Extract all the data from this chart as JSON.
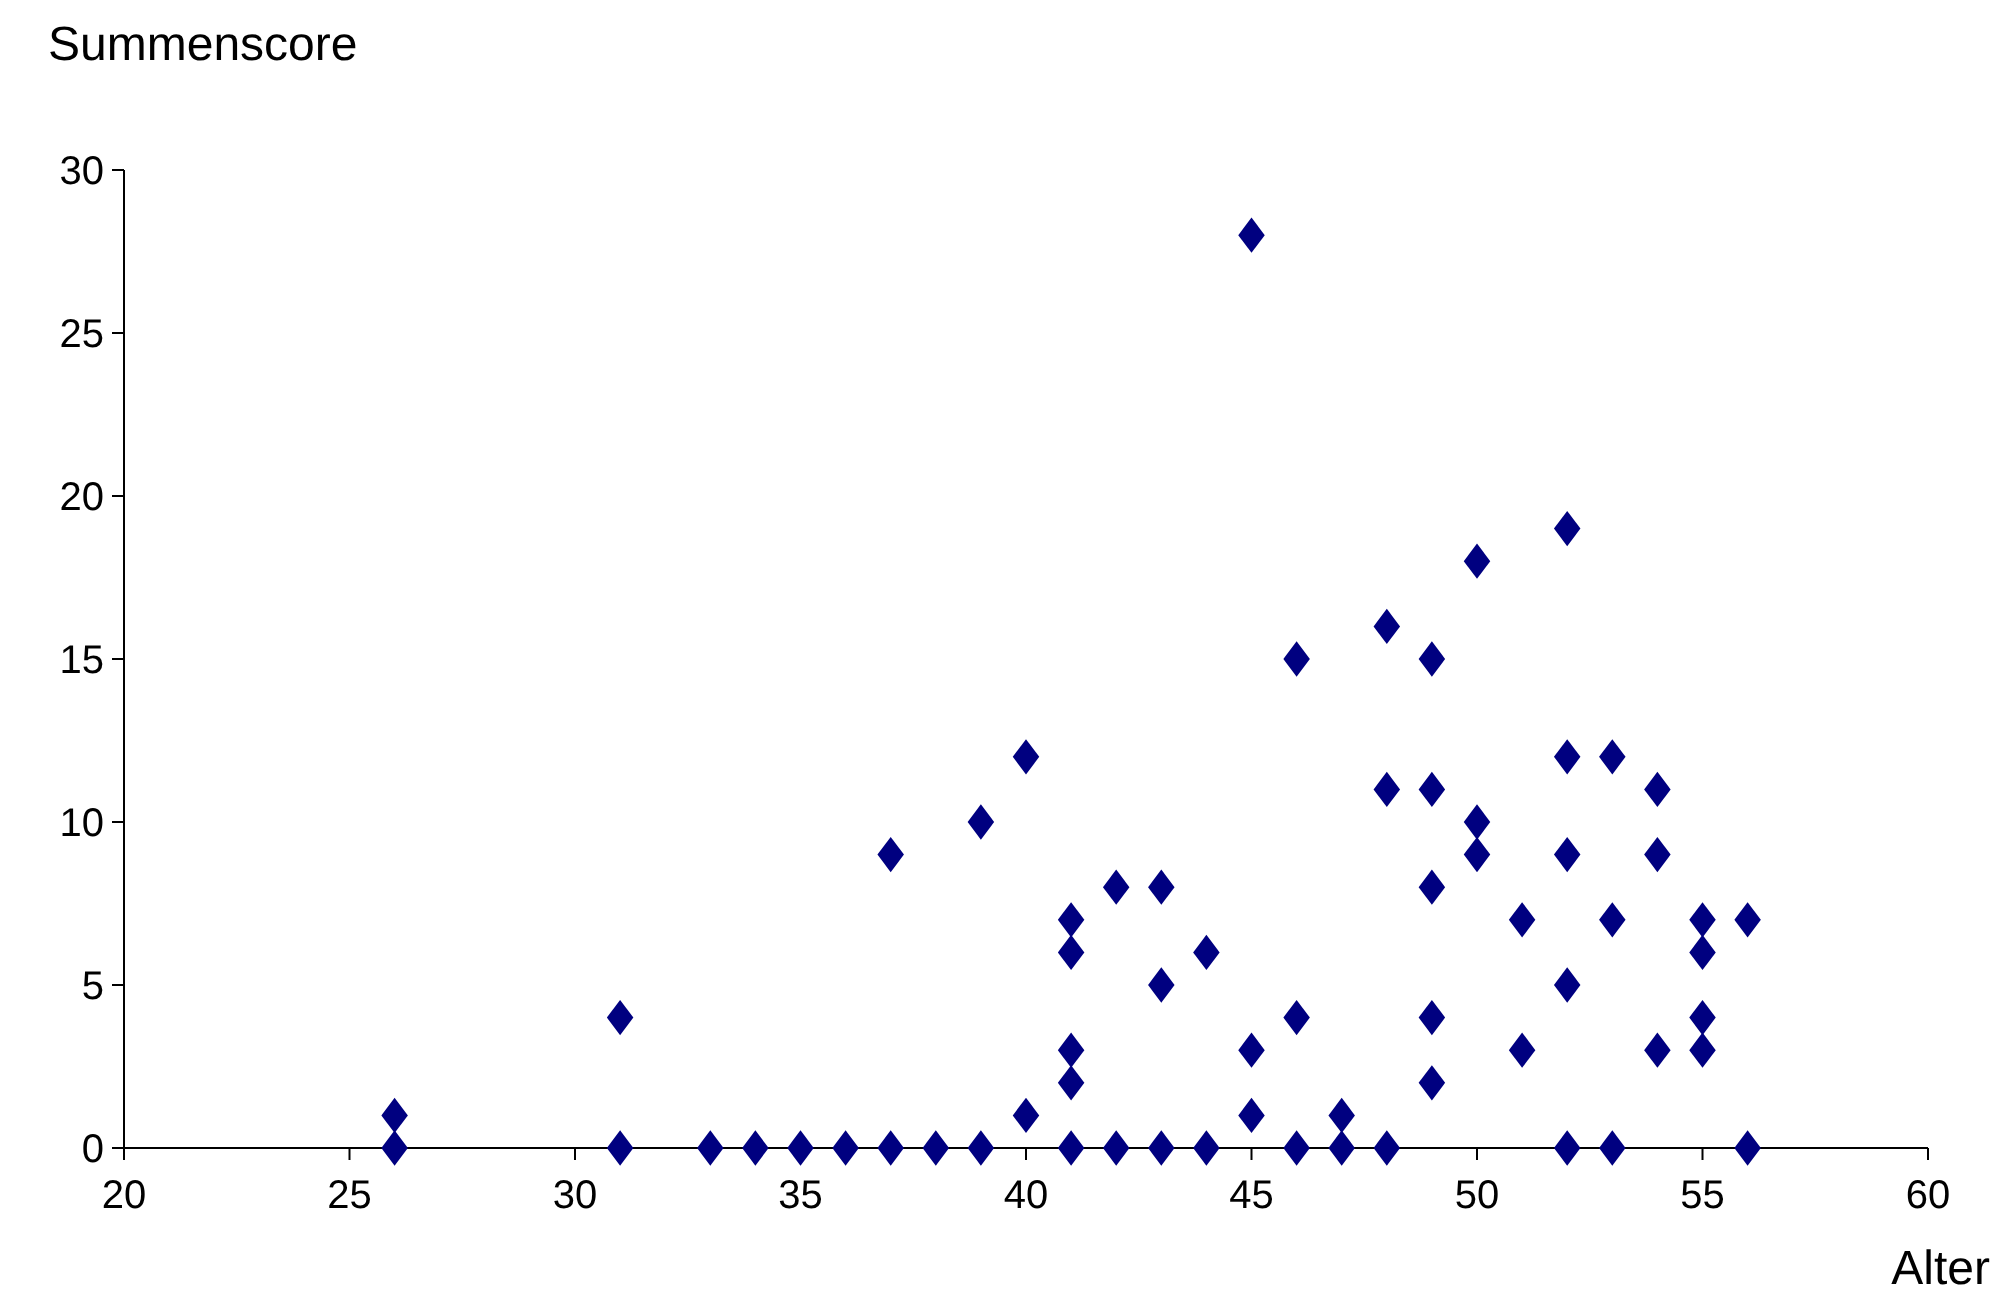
{
  "chart_data": {
    "type": "scatter",
    "xlabel": "Alter",
    "ylabel": "Summenscore",
    "x": [
      26,
      26,
      31,
      31,
      33,
      34,
      35,
      36,
      37,
      37,
      38,
      39,
      39,
      40,
      40,
      41,
      41,
      41,
      41,
      41,
      42,
      42,
      43,
      43,
      43,
      44,
      44,
      45,
      45,
      45,
      46,
      46,
      46,
      47,
      47,
      48,
      48,
      48,
      49,
      49,
      49,
      49,
      49,
      50,
      50,
      50,
      51,
      51,
      52,
      52,
      52,
      52,
      52,
      53,
      53,
      53,
      54,
      54,
      54,
      55,
      55,
      55,
      55,
      56,
      56
    ],
    "series": [
      {
        "color": "#000080",
        "values": [
          1,
          0,
          4,
          0,
          0,
          0,
          0,
          0,
          9,
          0,
          0,
          10,
          0,
          12,
          1,
          7,
          6,
          3,
          2,
          0,
          8,
          0,
          8,
          5,
          0,
          6,
          0,
          28,
          3,
          1,
          15,
          4,
          0,
          1,
          0,
          16,
          11,
          0,
          15,
          11,
          8,
          4,
          2,
          18,
          10,
          9,
          7,
          3,
          19,
          12,
          9,
          5,
          0,
          12,
          7,
          0,
          11,
          9,
          3,
          7,
          6,
          4,
          3,
          7,
          0
        ]
      }
    ],
    "xlim": [
      20,
      60
    ],
    "xticks": [
      20,
      25,
      30,
      35,
      40,
      45,
      50,
      55,
      60
    ],
    "ylim": [
      0,
      30
    ],
    "yticks": [
      0,
      5,
      10,
      15,
      20,
      25,
      30
    ],
    "grid": false,
    "marker": "diamond"
  }
}
